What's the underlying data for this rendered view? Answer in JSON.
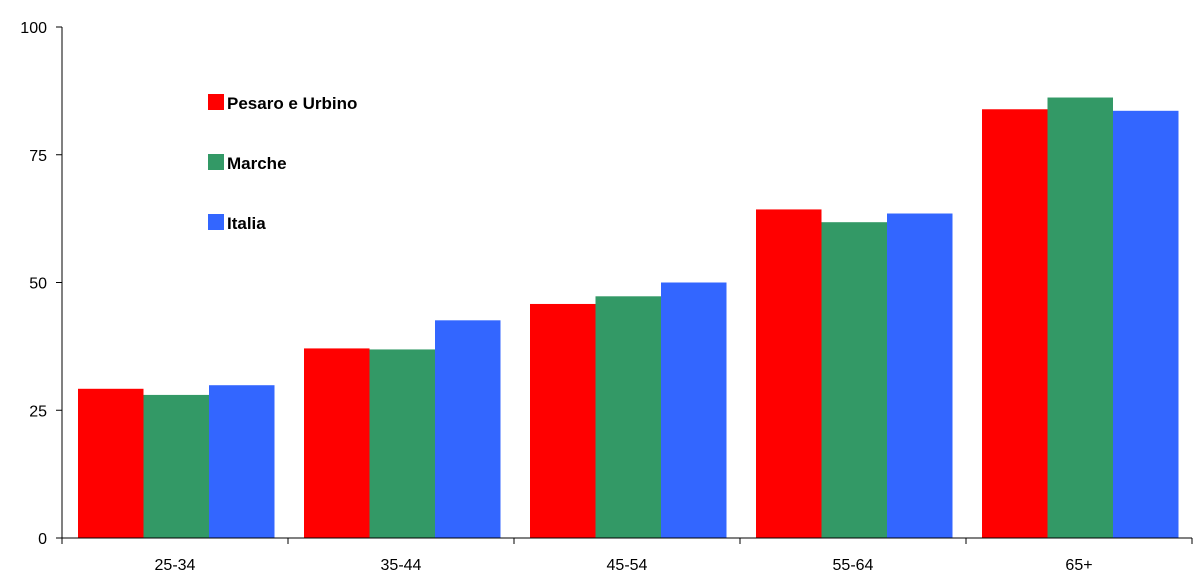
{
  "chart_data": {
    "type": "bar",
    "title": "",
    "xlabel": "",
    "ylabel": "",
    "categories": [
      "25-34",
      "35-44",
      "45-54",
      "55-64",
      "65+"
    ],
    "series": [
      {
        "name": "Pesaro e Urbino",
        "color": "#ff0000",
        "values": [
          29.2,
          37.1,
          45.8,
          64.3,
          83.9
        ]
      },
      {
        "name": "Marche",
        "color": "#339966",
        "values": [
          28.0,
          36.9,
          47.3,
          61.8,
          86.2
        ]
      },
      {
        "name": "Italia",
        "color": "#3366ff",
        "values": [
          29.9,
          42.6,
          50.0,
          63.5,
          83.6
        ]
      }
    ],
    "ylim": [
      0,
      100
    ],
    "yticks": [
      0,
      25,
      50,
      75,
      100
    ],
    "grid": false,
    "legend_position": "top-left"
  }
}
